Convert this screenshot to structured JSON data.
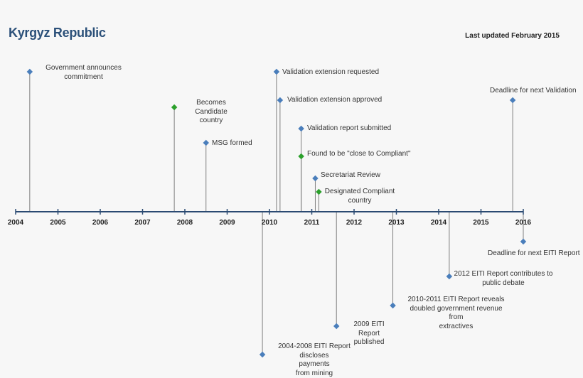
{
  "header": {
    "title": "Kyrgyz Republic",
    "last_updated": "Last updated February 2015"
  },
  "colors": {
    "axis": "#2b4a72",
    "stem": "#7f7f7f",
    "marker_default": "#4a7ebb",
    "marker_milestone": "#2ca02c"
  },
  "years": [
    "2004",
    "2005",
    "2006",
    "2007",
    "2008",
    "2009",
    "2010",
    "2011",
    "2012",
    "2013",
    "2014",
    "2015",
    "2016"
  ],
  "events": [
    {
      "label": "Government announces\ncommitment",
      "date": "2004-05",
      "side": "above",
      "marker": "default"
    },
    {
      "label": "Becomes Candidate\ncountry",
      "date": "2007-10",
      "side": "above",
      "marker": "milestone"
    },
    {
      "label": "MSG formed",
      "date": "2008-07",
      "side": "above",
      "marker": "default"
    },
    {
      "label": "Validation extension requested",
      "date": "2010-03",
      "side": "above",
      "marker": "default"
    },
    {
      "label": "Validation extension approved",
      "date": "2010-04",
      "side": "above",
      "marker": "default"
    },
    {
      "label": "Validation report submitted",
      "date": "2010-10",
      "side": "above",
      "marker": "default"
    },
    {
      "label": "Found to be \"close to Compliant\"",
      "date": "2010-10",
      "side": "above",
      "marker": "milestone"
    },
    {
      "label": "Secretariat Review",
      "date": "2011-02",
      "side": "above",
      "marker": "default"
    },
    {
      "label": "Designated Compliant\ncountry",
      "date": "2011-03",
      "side": "above",
      "marker": "milestone"
    },
    {
      "label": "Deadline for next Validation",
      "date": "2015-10",
      "side": "above",
      "marker": "default"
    },
    {
      "label": "2004-2008 EITI Report discloses\npayments\nfrom mining",
      "date": "2009-11",
      "side": "below",
      "marker": "default"
    },
    {
      "label": "2009 EITI Report\npublished",
      "date": "2011-08",
      "side": "below",
      "marker": "default"
    },
    {
      "label": "2010-2011 EITI Report reveals\ndoubled government revenue from\nextractives",
      "date": "2012-12",
      "side": "below",
      "marker": "default"
    },
    {
      "label": "2012 EITI Report contributes to\npublic debate",
      "date": "2014-04",
      "side": "below",
      "marker": "default"
    },
    {
      "label": "Deadline for next EITI Report",
      "date": "2016-01",
      "side": "below",
      "marker": "default"
    }
  ]
}
